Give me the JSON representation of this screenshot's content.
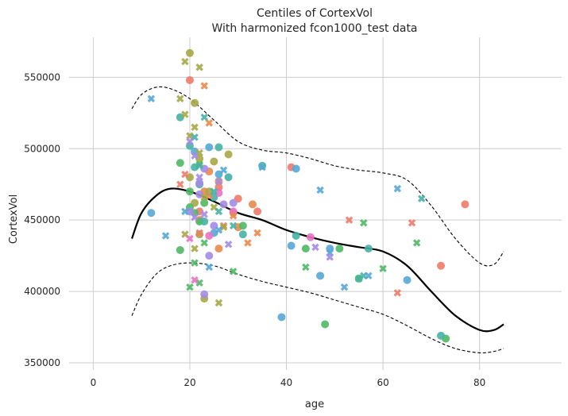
{
  "chart_data": {
    "type": "scatter",
    "title": "Centiles of CortexVol",
    "subtitle": "With harmonized fcon1000_test data",
    "xlabel": "age",
    "ylabel": "CortexVol",
    "xlim": [
      -5,
      97
    ],
    "ylim": [
      345000,
      578000
    ],
    "xticks": [
      0,
      20,
      40,
      60,
      80
    ],
    "yticks": [
      350000,
      400000,
      450000,
      500000,
      550000
    ],
    "xtick_labels": [
      "0",
      "20",
      "40",
      "60",
      "80"
    ],
    "ytick_labels": [
      "350000",
      "400000",
      "450000",
      "500000",
      "550000"
    ],
    "grid": true,
    "series": [
      {
        "marker": "circle",
        "color": "#ee7b6c",
        "points": [
          [
            20,
            548000
          ],
          [
            72,
            418000
          ],
          [
            77,
            461000
          ],
          [
            41,
            487000
          ],
          [
            30,
            465000
          ],
          [
            22,
            456000
          ],
          [
            26,
            473000
          ],
          [
            34,
            456000
          ]
        ]
      },
      {
        "marker": "circle",
        "color": "#e8894c",
        "points": [
          [
            24,
            484000
          ],
          [
            26,
            477000
          ],
          [
            29,
            455000
          ],
          [
            33,
            461000
          ],
          [
            22,
            450000
          ],
          [
            26,
            430000
          ],
          [
            30,
            445000
          ],
          [
            23,
            470000
          ]
        ]
      },
      {
        "marker": "circle",
        "color": "#a5a845",
        "points": [
          [
            20,
            567000
          ],
          [
            21,
            532000
          ],
          [
            22,
            493000
          ],
          [
            23,
            395000
          ],
          [
            24,
            470000
          ],
          [
            25,
            491000
          ],
          [
            28,
            496000
          ],
          [
            20,
            480000
          ],
          [
            21,
            462000
          ],
          [
            22,
            440000
          ]
        ]
      },
      {
        "marker": "circle",
        "color": "#4fb863",
        "points": [
          [
            18,
            490000
          ],
          [
            18,
            429000
          ],
          [
            20,
            459000
          ],
          [
            21,
            455000
          ],
          [
            22,
            449000
          ],
          [
            23,
            462000
          ],
          [
            31,
            446000
          ],
          [
            44,
            430000
          ],
          [
            48,
            377000
          ],
          [
            51,
            430000
          ],
          [
            55,
            409000
          ],
          [
            73,
            367000
          ],
          [
            20,
            470000
          ]
        ]
      },
      {
        "marker": "circle",
        "color": "#46b3a6",
        "points": [
          [
            18,
            522000
          ],
          [
            20,
            502000
          ],
          [
            21,
            487000
          ],
          [
            22,
            475000
          ],
          [
            23,
            449000
          ],
          [
            25,
            466000
          ],
          [
            26,
            501000
          ],
          [
            28,
            480000
          ],
          [
            31,
            440000
          ],
          [
            35,
            488000
          ],
          [
            42,
            439000
          ],
          [
            57,
            430000
          ],
          [
            72,
            369000
          ]
        ]
      },
      {
        "marker": "circle",
        "color": "#55a7d6",
        "points": [
          [
            12,
            455000
          ],
          [
            21,
            498000
          ],
          [
            24,
            501000
          ],
          [
            25,
            441000
          ],
          [
            26,
            482000
          ],
          [
            39,
            382000
          ],
          [
            41,
            432000
          ],
          [
            42,
            486000
          ],
          [
            47,
            411000
          ],
          [
            49,
            430000
          ],
          [
            65,
            408000
          ]
        ]
      },
      {
        "marker": "circle",
        "color": "#a48be8",
        "points": [
          [
            20,
            456000
          ],
          [
            22,
            468000
          ],
          [
            23,
            398000
          ],
          [
            24,
            425000
          ],
          [
            25,
            446000
          ],
          [
            27,
            461000
          ],
          [
            29,
            462000
          ],
          [
            23,
            486000
          ],
          [
            22,
            476000
          ]
        ]
      },
      {
        "marker": "circle",
        "color": "#e772c4",
        "points": [
          [
            24,
            439000
          ],
          [
            26,
            469000
          ],
          [
            45,
            438000
          ],
          [
            29,
            456000
          ]
        ]
      },
      {
        "marker": "cross",
        "color": "#ee7b6c",
        "points": [
          [
            18,
            475000
          ],
          [
            19,
            482000
          ],
          [
            27,
            446000
          ],
          [
            53,
            450000
          ],
          [
            63,
            399000
          ],
          [
            66,
            448000
          ],
          [
            22,
            441000
          ]
        ]
      },
      {
        "marker": "cross",
        "color": "#e8894c",
        "points": [
          [
            23,
            544000
          ],
          [
            24,
            518000
          ],
          [
            29,
            453000
          ],
          [
            34,
            441000
          ],
          [
            32,
            434000
          ],
          [
            24,
            467000
          ]
        ]
      },
      {
        "marker": "cross",
        "color": "#a5a845",
        "points": [
          [
            19,
            561000
          ],
          [
            22,
            557000
          ],
          [
            18,
            535000
          ],
          [
            19,
            524000
          ],
          [
            20,
            509000
          ],
          [
            21,
            515000
          ],
          [
            22,
            497000
          ],
          [
            23,
            466000
          ],
          [
            25,
            459000
          ],
          [
            26,
            392000
          ],
          [
            27,
            445000
          ],
          [
            19,
            440000
          ],
          [
            21,
            430000
          ]
        ]
      },
      {
        "marker": "cross",
        "color": "#4fb863",
        "points": [
          [
            20,
            403000
          ],
          [
            22,
            406000
          ],
          [
            23,
            434000
          ],
          [
            29,
            414000
          ],
          [
            44,
            417000
          ],
          [
            56,
            448000
          ],
          [
            60,
            416000
          ],
          [
            67,
            434000
          ],
          [
            21,
            420000
          ],
          [
            22,
            489000
          ]
        ]
      },
      {
        "marker": "cross",
        "color": "#46b3a6",
        "points": [
          [
            23,
            522000
          ],
          [
            21,
            508000
          ],
          [
            22,
            488000
          ],
          [
            25,
            470000
          ],
          [
            26,
            456000
          ],
          [
            55,
            409000
          ],
          [
            56,
            411000
          ],
          [
            68,
            465000
          ],
          [
            29,
            446000
          ]
        ]
      },
      {
        "marker": "cross",
        "color": "#55a7d6",
        "points": [
          [
            12,
            535000
          ],
          [
            15,
            439000
          ],
          [
            19,
            456000
          ],
          [
            24,
            417000
          ],
          [
            26,
            443000
          ],
          [
            27,
            485000
          ],
          [
            35,
            487000
          ],
          [
            47,
            471000
          ],
          [
            49,
            427000
          ],
          [
            52,
            403000
          ],
          [
            57,
            411000
          ],
          [
            63,
            472000
          ]
        ]
      },
      {
        "marker": "cross",
        "color": "#a48be8",
        "points": [
          [
            20,
            505000
          ],
          [
            21,
            495000
          ],
          [
            22,
            480000
          ],
          [
            23,
            454000
          ],
          [
            26,
            477000
          ],
          [
            28,
            433000
          ],
          [
            49,
            424000
          ],
          [
            46,
            431000
          ],
          [
            21,
            452000
          ]
        ]
      },
      {
        "marker": "cross",
        "color": "#e772c4",
        "points": [
          [
            21,
            408000
          ],
          [
            20,
            437000
          ]
        ]
      }
    ],
    "centile_lines": [
      {
        "style": "solid",
        "color": "#000000",
        "points": [
          [
            8,
            437000
          ],
          [
            10,
            455000
          ],
          [
            13,
            467000
          ],
          [
            16,
            472000
          ],
          [
            20,
            470000
          ],
          [
            25,
            463000
          ],
          [
            30,
            455000
          ],
          [
            35,
            450000
          ],
          [
            40,
            443000
          ],
          [
            45,
            438000
          ],
          [
            50,
            434000
          ],
          [
            55,
            431000
          ],
          [
            60,
            428000
          ],
          [
            65,
            418000
          ],
          [
            70,
            400000
          ],
          [
            75,
            383000
          ],
          [
            80,
            373000
          ],
          [
            83,
            373000
          ],
          [
            85,
            377000
          ]
        ]
      },
      {
        "style": "dashed",
        "color": "#000000",
        "points": [
          [
            8,
            528000
          ],
          [
            10,
            538000
          ],
          [
            13,
            543000
          ],
          [
            16,
            542000
          ],
          [
            20,
            535000
          ],
          [
            25,
            520000
          ],
          [
            30,
            505000
          ],
          [
            35,
            499000
          ],
          [
            40,
            497000
          ],
          [
            45,
            493000
          ],
          [
            50,
            488000
          ],
          [
            55,
            485000
          ],
          [
            60,
            483000
          ],
          [
            65,
            478000
          ],
          [
            70,
            460000
          ],
          [
            75,
            437000
          ],
          [
            80,
            420000
          ],
          [
            83,
            419000
          ],
          [
            85,
            428000
          ]
        ]
      },
      {
        "style": "dashed",
        "color": "#000000",
        "points": [
          [
            8,
            383000
          ],
          [
            10,
            398000
          ],
          [
            13,
            412000
          ],
          [
            16,
            418000
          ],
          [
            20,
            420000
          ],
          [
            25,
            418000
          ],
          [
            30,
            412000
          ],
          [
            35,
            407000
          ],
          [
            40,
            403000
          ],
          [
            45,
            399000
          ],
          [
            50,
            394000
          ],
          [
            55,
            389000
          ],
          [
            60,
            384000
          ],
          [
            65,
            376000
          ],
          [
            70,
            367000
          ],
          [
            75,
            360000
          ],
          [
            80,
            357000
          ],
          [
            83,
            358000
          ],
          [
            85,
            360000
          ]
        ]
      }
    ]
  }
}
